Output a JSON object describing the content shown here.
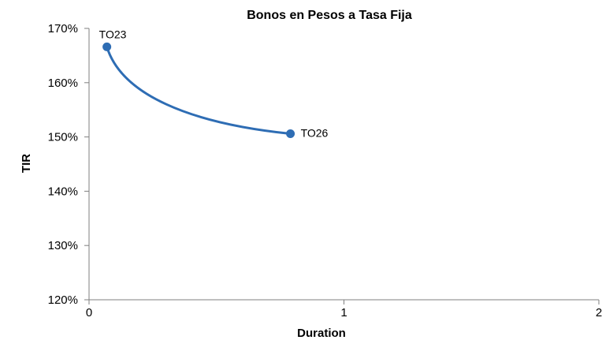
{
  "chart_data": {
    "type": "line",
    "title": "Bonos en Pesos a Tasa Fija",
    "xlabel": "Duration",
    "ylabel": "TIR",
    "xlim": [
      0,
      2
    ],
    "ylim": [
      120,
      170
    ],
    "x_ticks": [
      "0",
      "1",
      "2"
    ],
    "y_ticks": [
      "120%",
      "130%",
      "140%",
      "150%",
      "160%",
      "170%"
    ],
    "grid": false,
    "legend": "none",
    "smooth": true,
    "series": [
      {
        "color": "#2E6DB4",
        "points": [
          {
            "label": "TO23",
            "x": 0.07,
            "y": 166.6
          },
          {
            "label": "TO26",
            "x": 0.79,
            "y": 150.6
          }
        ]
      }
    ]
  }
}
